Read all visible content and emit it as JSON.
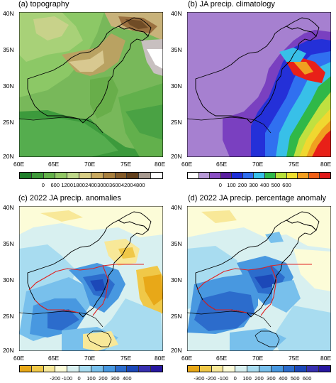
{
  "panels": {
    "a": {
      "title": "(a) topography"
    },
    "b": {
      "title": "(b) JA precip. climatology"
    },
    "c": {
      "title": "(c) 2022 JA precip. anomalies"
    },
    "d": {
      "title": "(d) 2022 JA precip. percentage anomaly"
    }
  },
  "axes": {
    "lat_ticks": [
      "40N",
      "35N",
      "30N",
      "25N",
      "20N"
    ],
    "lon_ticks": [
      "60E",
      "65E",
      "70E",
      "75E",
      "80E"
    ]
  },
  "colorbars": {
    "a": {
      "labels": [
        "0",
        "600",
        "1200",
        "1800",
        "2400",
        "3000",
        "3600",
        "4200",
        "4800"
      ],
      "colors": [
        "#1f7f2a",
        "#3f9a3a",
        "#64b24b",
        "#92c865",
        "#bfd98a",
        "#d9cf86",
        "#c9a95f",
        "#a9803f",
        "#855c2a",
        "#63411d",
        "#a89a90",
        "#ffffff"
      ]
    },
    "b": {
      "labels": [
        "0",
        "100",
        "200",
        "300",
        "400",
        "500",
        "600"
      ],
      "colors": [
        "#ffffff",
        "#b89ad8",
        "#8a4fc4",
        "#5a1fa0",
        "#1f2fd8",
        "#2f6ff0",
        "#38c0e8",
        "#2fb84a",
        "#b8e03a",
        "#f0e030",
        "#f5a020",
        "#f06018",
        "#e01818"
      ]
    },
    "c": {
      "labels": [
        "-200",
        "-100",
        "0",
        "100",
        "200",
        "300",
        "400"
      ],
      "colors": [
        "#e8a818",
        "#f0c848",
        "#f8e898",
        "#fcfcd8",
        "#d8f0f0",
        "#a8dcf0",
        "#78c0ec",
        "#4898e0",
        "#2c6ccc",
        "#1c48b8",
        "#3830b0",
        "#2818a0"
      ]
    },
    "d": {
      "labels": [
        "-300",
        "-200",
        "-100",
        "0",
        "100",
        "200",
        "300",
        "400",
        "500",
        "600"
      ],
      "colors": [
        "#e8a818",
        "#f0c848",
        "#f8e898",
        "#fcfcd8",
        "#d8f0f0",
        "#a8dcf0",
        "#78c0ec",
        "#4898e0",
        "#2c6ccc",
        "#1c48b8",
        "#3830b0",
        "#2818a0"
      ]
    }
  }
}
